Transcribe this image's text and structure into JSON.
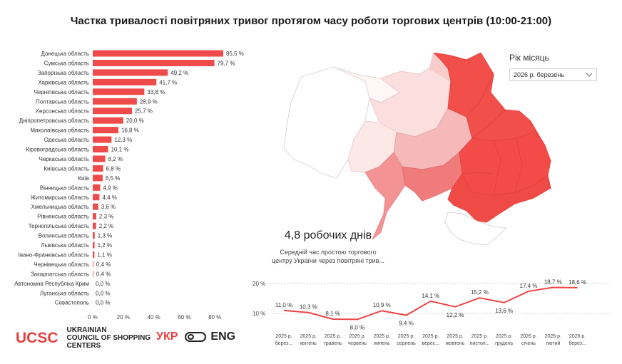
{
  "title": "Частка тривалості повітряних тривог протягом часу роботи торгових центрів (10:00-21:00)",
  "filter": {
    "label": "Рік місяць",
    "value": "2026 р. березень",
    "icon": "chevron-down-icon"
  },
  "kpi": {
    "value": "4,8 робочих днів",
    "subtitle_line1": "Середній час простою торгового",
    "subtitle_line2": "центру України через повітряні трив..."
  },
  "logo": {
    "mark": "UCSC",
    "line1": "UKRAINIAN",
    "line2": "COUNCIL OF SHOPPING",
    "line3": "CENTERS"
  },
  "language": {
    "active": "УКР",
    "other": "ENG"
  },
  "colors": {
    "accent": "#e84040",
    "bar": "#ef4b4b",
    "map_high": "#f24f4a",
    "line": "#ee4444"
  },
  "chart_data": [
    {
      "type": "bar",
      "orientation": "horizontal",
      "categories": [
        "Донецька область",
        "Сумська область",
        "Запорізька область",
        "Харківська область",
        "Чернігівська область",
        "Полтавська область",
        "Херсонська область",
        "Дніпропетровська область",
        "Миколаївська область",
        "Одеська область",
        "Кіровоградська область",
        "Черкаська область",
        "Київська область",
        "Київ",
        "Вінницька область",
        "Житомирська область",
        "Хмельницька область",
        "Рівненська область",
        "Тернопільська область",
        "Волинська область",
        "Львівська область",
        "Івано-Франківська область",
        "Чернівецька область",
        "Закарпатська область",
        "Автономна Республіка Крим",
        "Луганська область",
        "Севастополь"
      ],
      "values": [
        85.5,
        79.7,
        49.2,
        41.7,
        33.8,
        28.9,
        25.7,
        20.0,
        16.8,
        12.3,
        10.1,
        8.2,
        6.8,
        6.5,
        4.9,
        4.4,
        3.6,
        2.3,
        2.2,
        1.3,
        1.2,
        1.1,
        0.4,
        0.4,
        0.0,
        0.0,
        0.0
      ],
      "value_labels": [
        "85,5 %",
        "79,7 %",
        "49,2 %",
        "41,7 %",
        "33,8 %",
        "28,9 %",
        "25,7 %",
        "20,0 %",
        "16,8 %",
        "12,3 %",
        "10,1 %",
        "8,2 %",
        "6,8 %",
        "6,5 %",
        "4,9 %",
        "4,4 %",
        "3,6 %",
        "2,3 %",
        "2,2 %",
        "1,3 %",
        "1,2 %",
        "1,1 %",
        "0,4 %",
        "0,4 %",
        "0,0 %",
        "0,0 %",
        "0,0 %"
      ],
      "x_ticks": [
        "0 %",
        "20 %",
        "40 %",
        "60 %",
        "80 %"
      ],
      "xlim": [
        0,
        90
      ]
    },
    {
      "type": "line",
      "categories": [
        "2025 р. берез...",
        "2025 р. квітень",
        "2025 р. травень",
        "2025 р. червень",
        "2025 р. липень",
        "2025 р. серпень",
        "2025 р. верес...",
        "2025 р. жовтень",
        "2025 р. листоп...",
        "2025 р. грудень",
        "2026 р. січень",
        "2026 р. лютий",
        "2026 р. берез..."
      ],
      "values": [
        11.0,
        10.3,
        8.1,
        8.0,
        10.9,
        9.4,
        14.1,
        12.2,
        15.2,
        13.6,
        17.4,
        18.7,
        18.6
      ],
      "value_labels": [
        "11,0 %",
        "10,3 %",
        "8,1 %",
        "8,0 %",
        "10,9 %",
        "9,4 %",
        "14,1 %",
        "12,2 %",
        "15,2 %",
        "13,6 %",
        "17,4 %",
        "18,7 %",
        "18,6 %"
      ],
      "y_ticks": [
        "20 %",
        "10 %"
      ],
      "ylim": [
        4,
        21
      ],
      "grid": true
    }
  ]
}
